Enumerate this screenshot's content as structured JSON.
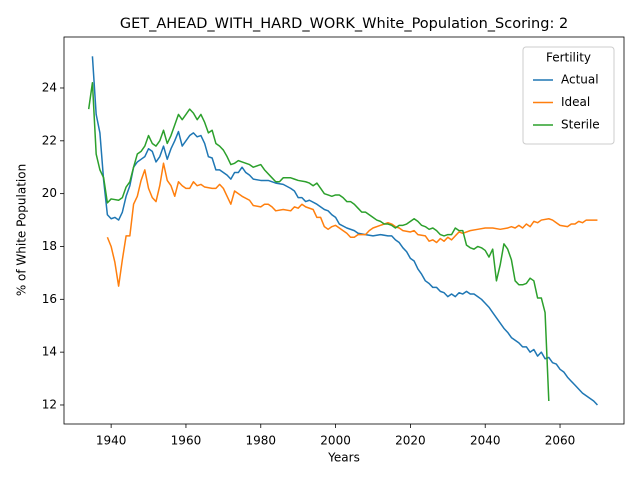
{
  "chart_data": {
    "type": "line",
    "title": "GET_AHEAD_WITH_HARD_WORK_White_Population_Scoring: 2",
    "x_label": "Years",
    "y_label": "% of White Population",
    "legend_title": "Fertility",
    "legend_loc": "upper right",
    "xlim": [
      1927.4,
      2077.1
    ],
    "ylim": [
      11.28,
      25.93
    ],
    "xticks": [
      1940,
      1960,
      1980,
      2000,
      2020,
      2040,
      2060
    ],
    "yticks": [
      12,
      14,
      16,
      18,
      20,
      22,
      24
    ],
    "grid": false,
    "series": [
      {
        "name": "Actual",
        "color": "#1f77b4",
        "x": [
          1935,
          1936,
          1937,
          1938,
          1939,
          1940,
          1941,
          1942,
          1943,
          1944,
          1945,
          1946,
          1947,
          1948,
          1949,
          1950,
          1951,
          1952,
          1953,
          1954,
          1955,
          1956,
          1957,
          1958,
          1959,
          1960,
          1961,
          1962,
          1963,
          1964,
          1965,
          1966,
          1967,
          1968,
          1969,
          1970,
          1971,
          1972,
          1973,
          1974,
          1975,
          1976,
          1977,
          1978,
          1980,
          1982,
          1984,
          1986,
          1988,
          1989,
          1990,
          1991,
          1992,
          1993,
          1995,
          1996,
          1997,
          1998,
          1999,
          2000,
          2001,
          2003,
          2005,
          2006,
          2008,
          2010,
          2012,
          2014,
          2015,
          2016,
          2017,
          2018,
          2019,
          2020,
          2021,
          2022,
          2023,
          2024,
          2025,
          2026,
          2027,
          2028,
          2029,
          2030,
          2031,
          2032,
          2033,
          2034,
          2035,
          2036,
          2037,
          2038,
          2039,
          2040,
          2041,
          2042,
          2043,
          2044,
          2045,
          2046,
          2047,
          2048,
          2049,
          2050,
          2051,
          2052,
          2053,
          2054,
          2055,
          2056,
          2057,
          2058,
          2059,
          2060,
          2061,
          2062,
          2063,
          2064,
          2065,
          2066,
          2067,
          2068,
          2069,
          2070
        ],
        "values": [
          25.2,
          23.0,
          22.3,
          20.5,
          19.2,
          19.05,
          19.1,
          19.0,
          19.3,
          19.9,
          20.3,
          21.0,
          21.2,
          21.3,
          21.4,
          21.7,
          21.6,
          21.2,
          21.4,
          21.8,
          21.3,
          21.7,
          22.0,
          22.35,
          21.8,
          22.0,
          22.2,
          22.3,
          22.15,
          22.2,
          21.9,
          21.4,
          21.35,
          20.9,
          20.9,
          20.8,
          20.7,
          20.55,
          20.8,
          20.8,
          21.0,
          20.8,
          20.7,
          20.55,
          20.5,
          20.5,
          20.4,
          20.35,
          20.2,
          20.1,
          19.85,
          19.85,
          19.7,
          19.75,
          19.6,
          19.5,
          19.4,
          19.35,
          19.2,
          19.1,
          18.85,
          18.7,
          18.6,
          18.5,
          18.45,
          18.4,
          18.45,
          18.4,
          18.4,
          18.25,
          18.15,
          17.95,
          17.8,
          17.55,
          17.45,
          17.15,
          16.95,
          16.7,
          16.6,
          16.45,
          16.45,
          16.3,
          16.25,
          16.1,
          16.2,
          16.1,
          16.25,
          16.2,
          16.3,
          16.2,
          16.2,
          16.1,
          16.0,
          15.85,
          15.7,
          15.5,
          15.3,
          15.1,
          14.9,
          14.75,
          14.55,
          14.45,
          14.35,
          14.2,
          14.2,
          14.0,
          14.1,
          13.85,
          14.0,
          13.75,
          13.8,
          13.6,
          13.55,
          13.35,
          13.25,
          13.05,
          12.9,
          12.75,
          12.6,
          12.45,
          12.35,
          12.25,
          12.15,
          12.0
        ]
      },
      {
        "name": "Ideal",
        "color": "#ff7f0e",
        "x": [
          1939,
          1940,
          1941,
          1942,
          1943,
          1944,
          1945,
          1946,
          1947,
          1948,
          1949,
          1950,
          1951,
          1952,
          1953,
          1954,
          1955,
          1956,
          1957,
          1958,
          1959,
          1960,
          1961,
          1962,
          1963,
          1964,
          1965,
          1967,
          1968,
          1969,
          1970,
          1971,
          1972,
          1973,
          1974,
          1975,
          1977,
          1978,
          1980,
          1981,
          1982,
          1983,
          1984,
          1986,
          1988,
          1989,
          1990,
          1991,
          1992,
          1994,
          1995,
          1996,
          1997,
          1998,
          1999,
          2000,
          2001,
          2002,
          2003,
          2004,
          2005,
          2006,
          2008,
          2009,
          2010,
          2012,
          2014,
          2015,
          2016,
          2017,
          2018,
          2020,
          2021,
          2022,
          2024,
          2025,
          2026,
          2027,
          2028,
          2029,
          2030,
          2031,
          2032,
          2033,
          2034,
          2036,
          2038,
          2040,
          2042,
          2044,
          2046,
          2047,
          2048,
          2049,
          2050,
          2051,
          2052,
          2053,
          2054,
          2055,
          2057,
          2058,
          2059,
          2060,
          2062,
          2063,
          2064,
          2065,
          2066,
          2067,
          2068,
          2070
        ],
        "values": [
          18.35,
          18.0,
          17.4,
          16.5,
          17.5,
          18.4,
          18.4,
          19.6,
          19.9,
          20.5,
          20.9,
          20.2,
          19.85,
          19.7,
          20.3,
          21.15,
          20.5,
          20.3,
          19.9,
          20.45,
          20.3,
          20.2,
          20.2,
          20.45,
          20.3,
          20.35,
          20.25,
          20.2,
          20.2,
          20.35,
          20.2,
          19.9,
          19.6,
          20.1,
          20.0,
          19.9,
          19.75,
          19.55,
          19.5,
          19.6,
          19.6,
          19.5,
          19.35,
          19.4,
          19.35,
          19.5,
          19.45,
          19.6,
          19.5,
          19.4,
          19.1,
          19.1,
          18.75,
          18.65,
          18.75,
          18.8,
          18.7,
          18.6,
          18.5,
          18.35,
          18.35,
          18.45,
          18.45,
          18.6,
          18.7,
          18.8,
          18.9,
          18.85,
          18.75,
          18.7,
          18.6,
          18.55,
          18.6,
          18.45,
          18.4,
          18.2,
          18.25,
          18.15,
          18.3,
          18.2,
          18.35,
          18.25,
          18.4,
          18.55,
          18.5,
          18.6,
          18.65,
          18.7,
          18.7,
          18.65,
          18.7,
          18.75,
          18.7,
          18.8,
          18.7,
          18.85,
          18.75,
          18.95,
          18.9,
          19.0,
          19.05,
          19.0,
          18.9,
          18.8,
          18.75,
          18.85,
          18.85,
          18.95,
          18.9,
          19.0,
          19.0,
          19.0
        ]
      },
      {
        "name": "Sterile",
        "color": "#2ca02c",
        "x": [
          1934,
          1935,
          1936,
          1937,
          1938,
          1939,
          1940,
          1942,
          1943,
          1944,
          1945,
          1946,
          1947,
          1948,
          1949,
          1950,
          1951,
          1952,
          1953,
          1954,
          1955,
          1956,
          1957,
          1958,
          1959,
          1960,
          1961,
          1962,
          1963,
          1964,
          1965,
          1966,
          1967,
          1968,
          1969,
          1970,
          1971,
          1972,
          1973,
          1974,
          1975,
          1977,
          1978,
          1980,
          1981,
          1983,
          1984,
          1985,
          1986,
          1988,
          1989,
          1990,
          1992,
          1993,
          1994,
          1995,
          1996,
          1997,
          1998,
          1999,
          2000,
          2001,
          2002,
          2003,
          2004,
          2005,
          2006,
          2007,
          2008,
          2009,
          2010,
          2011,
          2012,
          2013,
          2014,
          2015,
          2016,
          2017,
          2018,
          2019,
          2020,
          2021,
          2022,
          2023,
          2024,
          2025,
          2026,
          2027,
          2028,
          2029,
          2030,
          2031,
          2032,
          2033,
          2034,
          2035,
          2036,
          2037,
          2038,
          2039,
          2040,
          2041,
          2042,
          2043,
          2044,
          2045,
          2046,
          2047,
          2048,
          2049,
          2050,
          2051,
          2052,
          2053,
          2054,
          2055,
          2056,
          2057
        ],
        "values": [
          23.2,
          24.2,
          21.5,
          20.9,
          20.6,
          19.65,
          19.8,
          19.75,
          19.85,
          20.25,
          20.45,
          21.0,
          21.5,
          21.6,
          21.8,
          22.2,
          21.9,
          21.8,
          22.0,
          22.4,
          21.9,
          22.2,
          22.6,
          23.0,
          22.8,
          23.0,
          23.2,
          23.05,
          22.8,
          23.0,
          22.7,
          22.3,
          22.4,
          21.9,
          21.8,
          21.65,
          21.4,
          21.1,
          21.15,
          21.25,
          21.2,
          21.1,
          21.0,
          21.1,
          20.9,
          20.6,
          20.45,
          20.45,
          20.6,
          20.6,
          20.55,
          20.5,
          20.45,
          20.4,
          20.3,
          20.4,
          20.2,
          20.0,
          19.95,
          19.9,
          19.95,
          19.95,
          19.85,
          19.7,
          19.7,
          19.6,
          19.45,
          19.3,
          19.3,
          19.2,
          19.1,
          19.0,
          18.95,
          18.85,
          18.85,
          18.8,
          18.7,
          18.8,
          18.8,
          18.85,
          18.95,
          19.05,
          18.95,
          18.8,
          18.75,
          18.65,
          18.7,
          18.6,
          18.45,
          18.4,
          18.45,
          18.45,
          18.7,
          18.6,
          18.6,
          18.05,
          17.95,
          17.9,
          18.0,
          17.95,
          17.85,
          17.6,
          17.9,
          16.7,
          17.3,
          18.1,
          17.9,
          17.5,
          16.7,
          16.55,
          16.55,
          16.6,
          16.8,
          16.7,
          16.05,
          16.05,
          15.5,
          12.15
        ]
      }
    ]
  }
}
